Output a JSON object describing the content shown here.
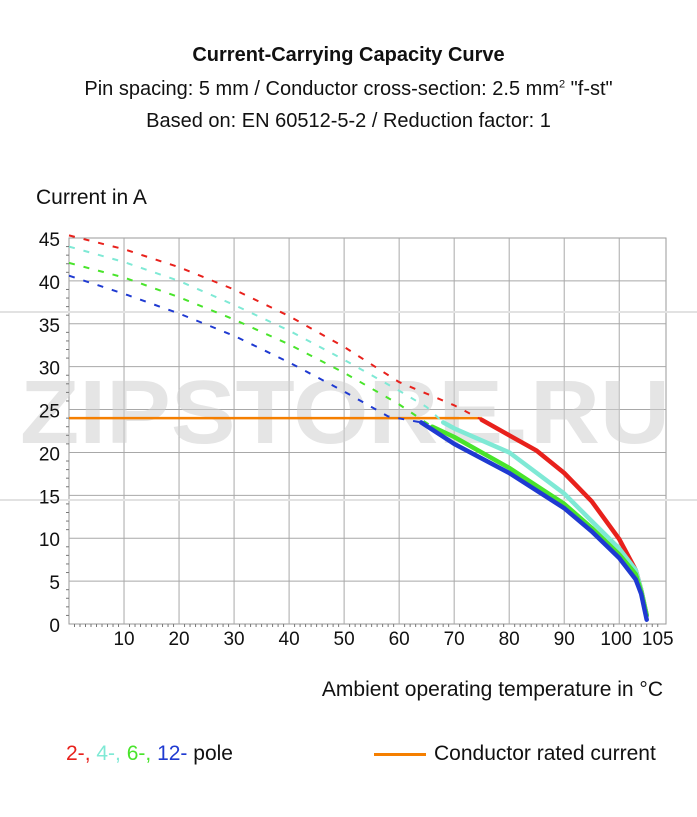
{
  "title": "Current-Carrying Capacity Curve",
  "subtitle_line1": {
    "pre": "Pin spacing: 5 mm / Conductor cross-section: 2.5 mm",
    "sup": "2",
    "post": " \"f-st\""
  },
  "subtitle_line2": "Based on: EN 60512-5-2 / Reduction factor: 1",
  "watermark": "ZIPSTORE.RU",
  "legend": {
    "poles": [
      {
        "text": "2-",
        "color": "#e8211c"
      },
      {
        "text": ", ",
        "color": "#e8211c"
      },
      {
        "text": "4-",
        "color": "#7fe9d5"
      },
      {
        "text": ", ",
        "color": "#7fe9d5"
      },
      {
        "text": "6-",
        "color": "#49e42b"
      },
      {
        "text": ", ",
        "color": "#49e42b"
      },
      {
        "text": "12-",
        "color": "#1f3ad1"
      },
      {
        "text": " pole",
        "color": "#111111"
      }
    ],
    "rated_label": "Conductor rated current",
    "rated_color": "#f57f00"
  },
  "chart_data": {
    "type": "line",
    "xlabel": "Ambient operating temperature in °C",
    "ylabel": "Current in A",
    "xlim": [
      0,
      105
    ],
    "ylim": [
      0,
      45
    ],
    "xticks": [
      10,
      20,
      30,
      40,
      50,
      60,
      70,
      80,
      90,
      100,
      105
    ],
    "yticks": [
      0,
      5,
      10,
      15,
      20,
      25,
      30,
      35,
      40,
      45
    ],
    "grid": true,
    "series": [
      {
        "name": "2-",
        "color": "#e8211c",
        "dashed": [
          [
            0,
            45.3
          ],
          [
            10,
            43.7
          ],
          [
            20,
            41.6
          ],
          [
            30,
            39.0
          ],
          [
            40,
            35.9
          ],
          [
            50,
            32.3
          ],
          [
            60,
            28.2
          ],
          [
            70,
            25.5
          ],
          [
            75,
            23.8
          ]
        ],
        "solid": [
          [
            75,
            23.8
          ],
          [
            80,
            22.0
          ],
          [
            85,
            20.2
          ],
          [
            90,
            17.6
          ],
          [
            95,
            14.3
          ],
          [
            100,
            9.9
          ],
          [
            103,
            6.3
          ],
          [
            104,
            4.0
          ],
          [
            105,
            1.0
          ]
        ]
      },
      {
        "name": "4-",
        "color": "#7fe9d5",
        "dashed": [
          [
            0,
            44.0
          ],
          [
            10,
            42.2
          ],
          [
            20,
            40.0
          ],
          [
            30,
            37.2
          ],
          [
            40,
            34.2
          ],
          [
            50,
            30.8
          ],
          [
            60,
            27.2
          ],
          [
            65,
            25.3
          ],
          [
            68,
            23.5
          ]
        ],
        "solid": [
          [
            68,
            23.5
          ],
          [
            70,
            22.8
          ],
          [
            80,
            20.0
          ],
          [
            90,
            15.2
          ],
          [
            95,
            12.0
          ],
          [
            100,
            8.8
          ],
          [
            103,
            6.3
          ],
          [
            104,
            4.0
          ],
          [
            105,
            1.0
          ]
        ]
      },
      {
        "name": "6-",
        "color": "#49e42b",
        "dashed": [
          [
            0,
            42.1
          ],
          [
            10,
            40.4
          ],
          [
            20,
            38.1
          ],
          [
            30,
            35.5
          ],
          [
            40,
            32.6
          ],
          [
            50,
            29.3
          ],
          [
            60,
            25.6
          ],
          [
            66,
            23.0
          ]
        ],
        "solid": [
          [
            66,
            23.0
          ],
          [
            70,
            21.8
          ],
          [
            80,
            18.2
          ],
          [
            90,
            14.0
          ],
          [
            95,
            11.2
          ],
          [
            100,
            8.1
          ],
          [
            103,
            5.8
          ],
          [
            104,
            3.8
          ],
          [
            105,
            1.0
          ]
        ]
      },
      {
        "name": "12-",
        "color": "#1f3ad1",
        "dashed": [
          [
            0,
            40.6
          ],
          [
            10,
            38.5
          ],
          [
            20,
            36.2
          ],
          [
            30,
            33.6
          ],
          [
            40,
            30.5
          ],
          [
            50,
            27.1
          ],
          [
            58,
            24.2
          ],
          [
            64,
            23.5
          ]
        ],
        "solid": [
          [
            64,
            23.5
          ],
          [
            70,
            21.0
          ],
          [
            80,
            17.6
          ],
          [
            90,
            13.5
          ],
          [
            95,
            10.8
          ],
          [
            100,
            7.7
          ],
          [
            103,
            5.2
          ],
          [
            104,
            3.5
          ],
          [
            105,
            0.5
          ]
        ]
      }
    ],
    "rated_current": {
      "name": "Conductor rated current",
      "value": 24,
      "x": [
        0,
        75
      ],
      "color": "#f57f00"
    }
  }
}
